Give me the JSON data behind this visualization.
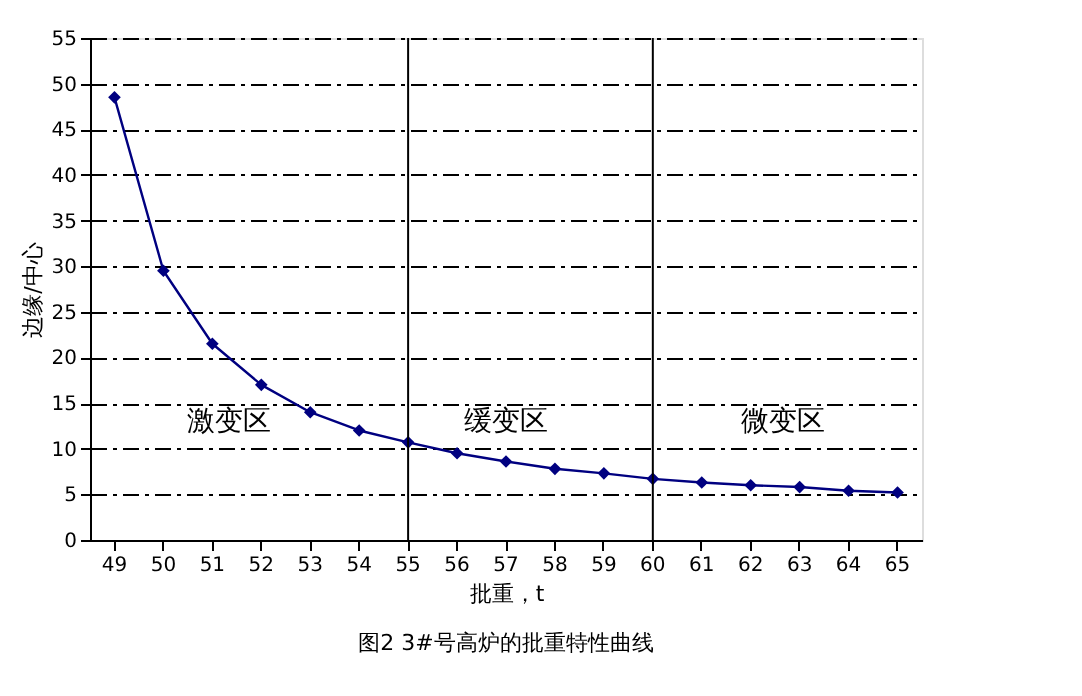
{
  "chart_data": {
    "type": "line",
    "title": "图2 3#号高炉的批重特性曲线",
    "xlabel": "批重，t",
    "ylabel": "边缘/中心",
    "categories": [
      "49",
      "50",
      "51",
      "52",
      "53",
      "54",
      "55",
      "56",
      "57",
      "58",
      "59",
      "60",
      "61",
      "62",
      "63",
      "64",
      "65"
    ],
    "series": [
      {
        "color": "#000080",
        "values": [
          48.5,
          29.5,
          21.5,
          17,
          14,
          12,
          10.7,
          9.5,
          8.6,
          7.8,
          7.3,
          6.7,
          6.3,
          6.0,
          5.8,
          5.4,
          5.2
        ]
      }
    ],
    "ylim": [
      0,
      55
    ],
    "yticks": [
      0,
      5,
      10,
      15,
      20,
      25,
      30,
      35,
      40,
      45,
      50,
      55
    ],
    "grid": "y",
    "marker": "diamond",
    "line_style": "solid",
    "ref_lines": [
      {
        "axis": "x",
        "value": "55",
        "color": "#000000"
      },
      {
        "axis": "x",
        "value": "60",
        "color": "#000000"
      }
    ],
    "annotations": [
      "激变区",
      "缓变区",
      "微变区"
    ]
  }
}
